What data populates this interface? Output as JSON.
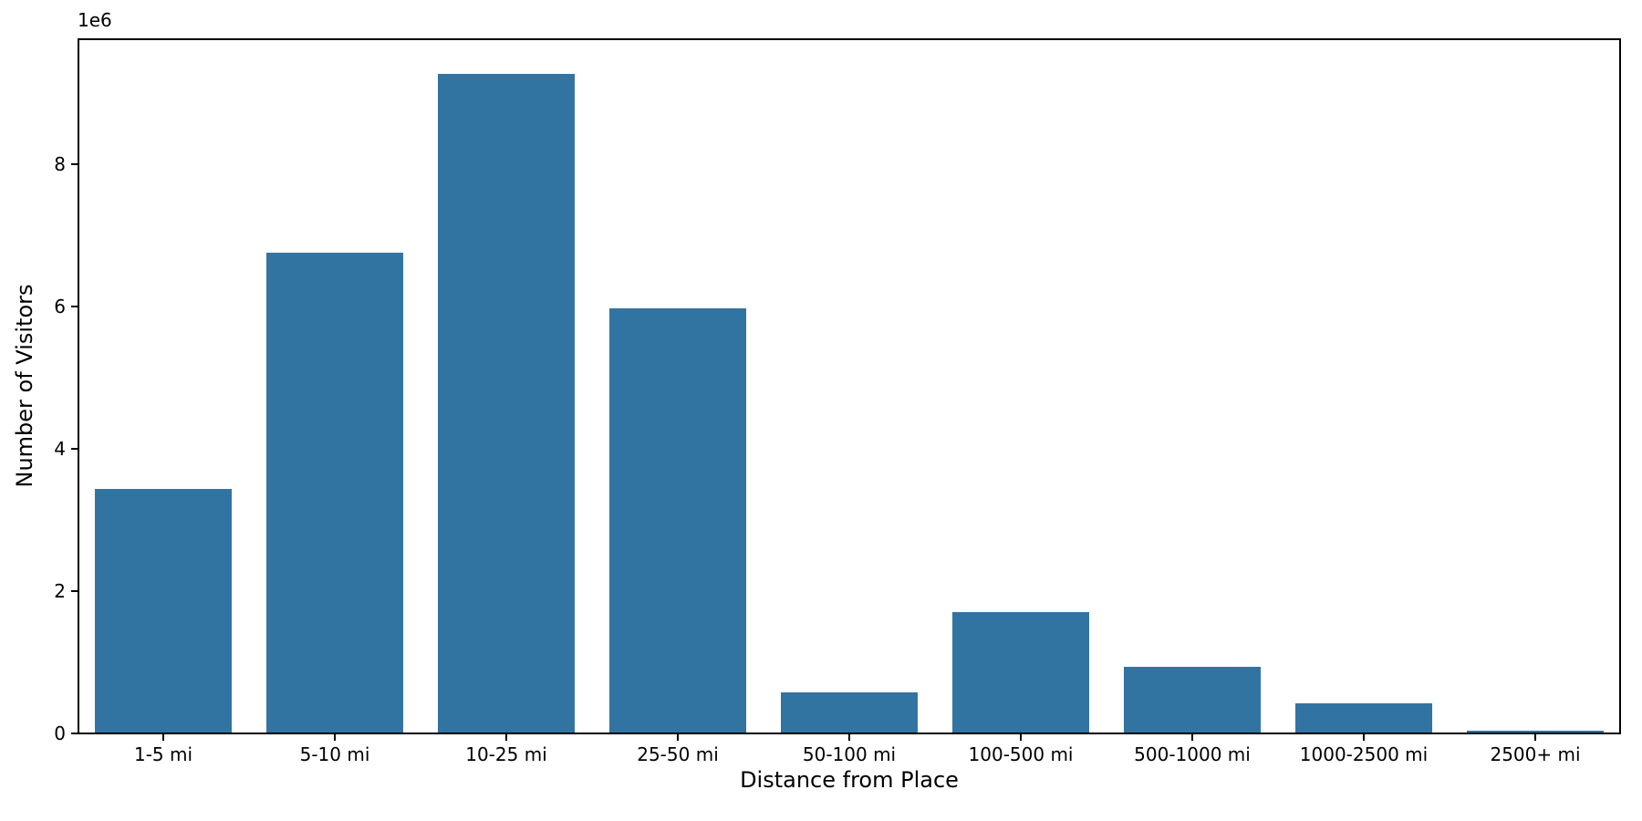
{
  "chart_data": {
    "type": "bar",
    "title": "",
    "xlabel": "Distance from Place",
    "ylabel": "Number of Visitors",
    "y_offset_text": "1e6",
    "categories": [
      "1-5 mi",
      "5-10 mi",
      "10-25 mi",
      "25-50 mi",
      "50-100 mi",
      "100-500 mi",
      "500-1000 mi",
      "1000-2500 mi",
      "2500+ mi"
    ],
    "values": [
      3420000,
      6740000,
      9260000,
      5960000,
      560000,
      1690000,
      920000,
      410000,
      20000
    ],
    "bar_color": "#3274a1",
    "axis_color": "#000000",
    "text_color": "#000000",
    "background_color": "#ffffff",
    "ylim": [
      0,
      9780000
    ],
    "yticks": [
      0,
      2000000,
      4000000,
      6000000,
      8000000
    ],
    "ytick_labels": [
      "0",
      "2",
      "4",
      "6",
      "8"
    ],
    "bar_width_fraction": 0.8,
    "grid": false,
    "legend": false
  }
}
